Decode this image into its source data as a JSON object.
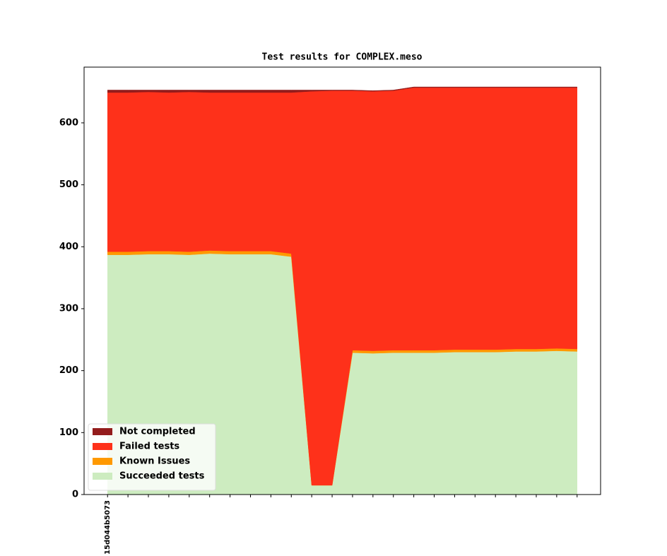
{
  "chart_data": {
    "type": "stacked-area",
    "title": "Test results for COMPLEX.meso",
    "categories": [
      "15d044b5073",
      null,
      null,
      null,
      null,
      null,
      null,
      null,
      null,
      null,
      null,
      null,
      null,
      null,
      null,
      null,
      null,
      null,
      null,
      null,
      null,
      null,
      null,
      null
    ],
    "series": [
      {
        "name": "Succeeded tests",
        "color": "#cdecc0",
        "values": [
          387,
          387,
          388,
          388,
          387,
          389,
          388,
          388,
          388,
          384,
          15,
          15,
          229,
          228,
          229,
          229,
          229,
          230,
          230,
          230,
          231,
          231,
          232,
          231
        ]
      },
      {
        "name": "Known Issues",
        "color": "#ff9900",
        "values": [
          5,
          5,
          5,
          5,
          5,
          5,
          5,
          5,
          5,
          5,
          0,
          0,
          4,
          4,
          4,
          4,
          4,
          4,
          4,
          4,
          4,
          4,
          4,
          4
        ]
      },
      {
        "name": "Failed tests",
        "color": "#fe311a",
        "values": [
          257,
          257,
          257,
          256,
          258,
          255,
          256,
          256,
          256,
          260,
          636,
          637,
          419,
          419,
          419,
          424,
          424,
          423,
          423,
          423,
          422,
          422,
          421,
          422
        ]
      },
      {
        "name": "Not completed",
        "color": "#931c1c",
        "values": [
          4,
          4,
          3,
          4,
          3,
          4,
          4,
          4,
          4,
          4,
          2,
          1,
          1,
          1,
          1,
          1,
          1,
          1,
          1,
          1,
          1,
          1,
          1,
          1
        ]
      }
    ],
    "ylim": [
      0,
      690
    ],
    "yticks": [
      0,
      100,
      200,
      300,
      400,
      500,
      600
    ],
    "legend": "lower left"
  }
}
